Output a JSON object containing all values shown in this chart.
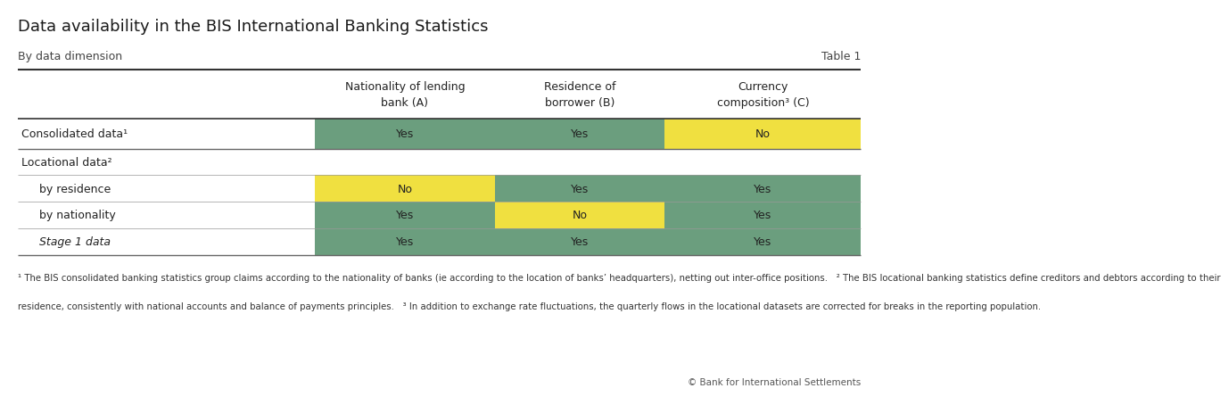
{
  "title": "Data availability in the BIS International Banking Statistics",
  "subtitle": "By data dimension",
  "table_label": "Table 1",
  "col_headers": [
    "Nationality of lending\nbank (A)",
    "Residence of\nborrower (B)",
    "Currency\ncomposition³ (C)"
  ],
  "row_labels": [
    "Consolidated data¹",
    "Locational data²",
    "by residence",
    "by nationality",
    "Stage 1 data"
  ],
  "italic_rows": [
    4
  ],
  "data": [
    [
      "Yes",
      "Yes",
      "No"
    ],
    [
      null,
      null,
      null
    ],
    [
      "No",
      "Yes",
      "Yes"
    ],
    [
      "Yes",
      "No",
      "Yes"
    ],
    [
      "Yes",
      "Yes",
      "Yes"
    ]
  ],
  "colors": {
    "green": "#6b9e7e",
    "yellow": "#f0e040"
  },
  "cell_colors": [
    [
      "green",
      "green",
      "yellow"
    ],
    [
      null,
      null,
      null
    ],
    [
      "yellow",
      "green",
      "green"
    ],
    [
      "green",
      "yellow",
      "green"
    ],
    [
      "green",
      "green",
      "green"
    ]
  ],
  "footnote_lines": [
    "¹ The BIS consolidated banking statistics group claims according to the nationality of banks (ie according to the location of banks’ headquarters), netting out inter-office positions.   ² The BIS locational banking statistics define creditors and debtors according to their",
    "residence, consistently with national accounts and balance of payments principles.   ³ In addition to exchange rate fluctuations, the quarterly flows in the locational datasets are corrected for breaks in the reporting population."
  ],
  "copyright": "© Bank for International Settlements",
  "background_color": "#ffffff"
}
